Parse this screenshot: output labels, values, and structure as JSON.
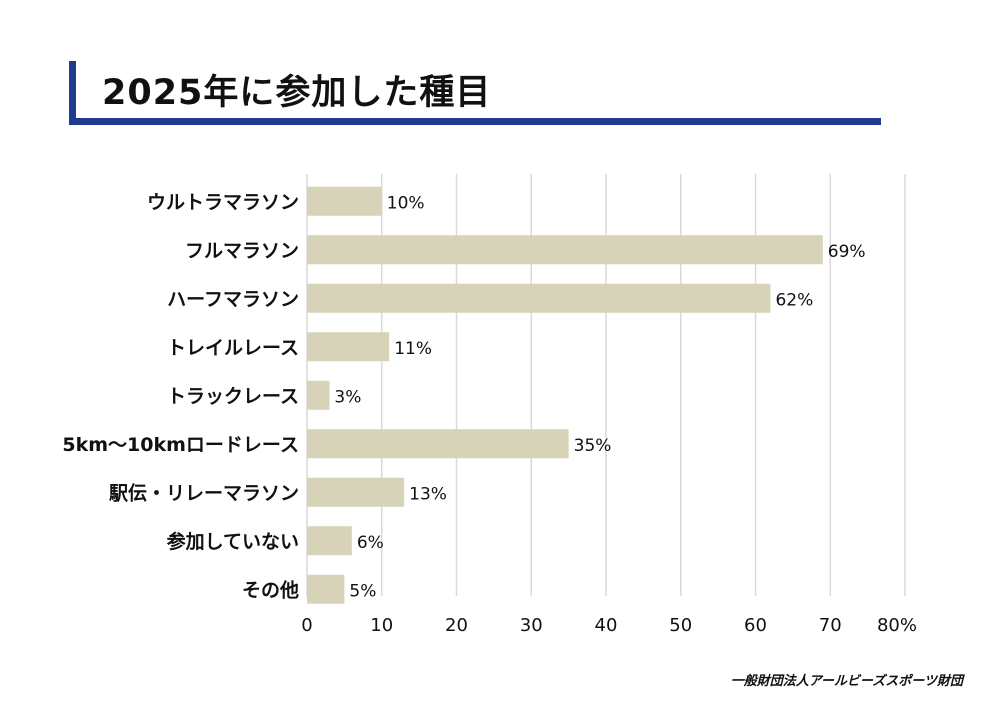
{
  "title": "2025年に参加した種目",
  "footer": "一般財団法人アールビーズスポーツ財団",
  "colors": {
    "accent": "#1f3b8f",
    "bar": "#d6d3b8",
    "grid": "#d9d9d9"
  },
  "chart_data": {
    "type": "bar",
    "orientation": "horizontal",
    "title": "2025年に参加した種目",
    "categories": [
      "ウルトラマラソン",
      "フルマラソン",
      "ハーフマラソン",
      "トレイルレース",
      "トラックレース",
      "5km〜10kmロードレース",
      "駅伝・リレーマラソン",
      "参加していない",
      "その他"
    ],
    "values": [
      10,
      69,
      62,
      11,
      3,
      35,
      13,
      6,
      5
    ],
    "value_labels": [
      "10%",
      "69%",
      "62%",
      "11%",
      "3%",
      "35%",
      "13%",
      "6%",
      "5%"
    ],
    "xlim": [
      0,
      80
    ],
    "xticks": [
      0,
      10,
      20,
      30,
      40,
      50,
      60,
      70,
      80
    ],
    "xtick_labels": [
      "0",
      "10",
      "20",
      "30",
      "40",
      "50",
      "60",
      "70",
      "80%"
    ],
    "grid": true,
    "legend": "none"
  }
}
